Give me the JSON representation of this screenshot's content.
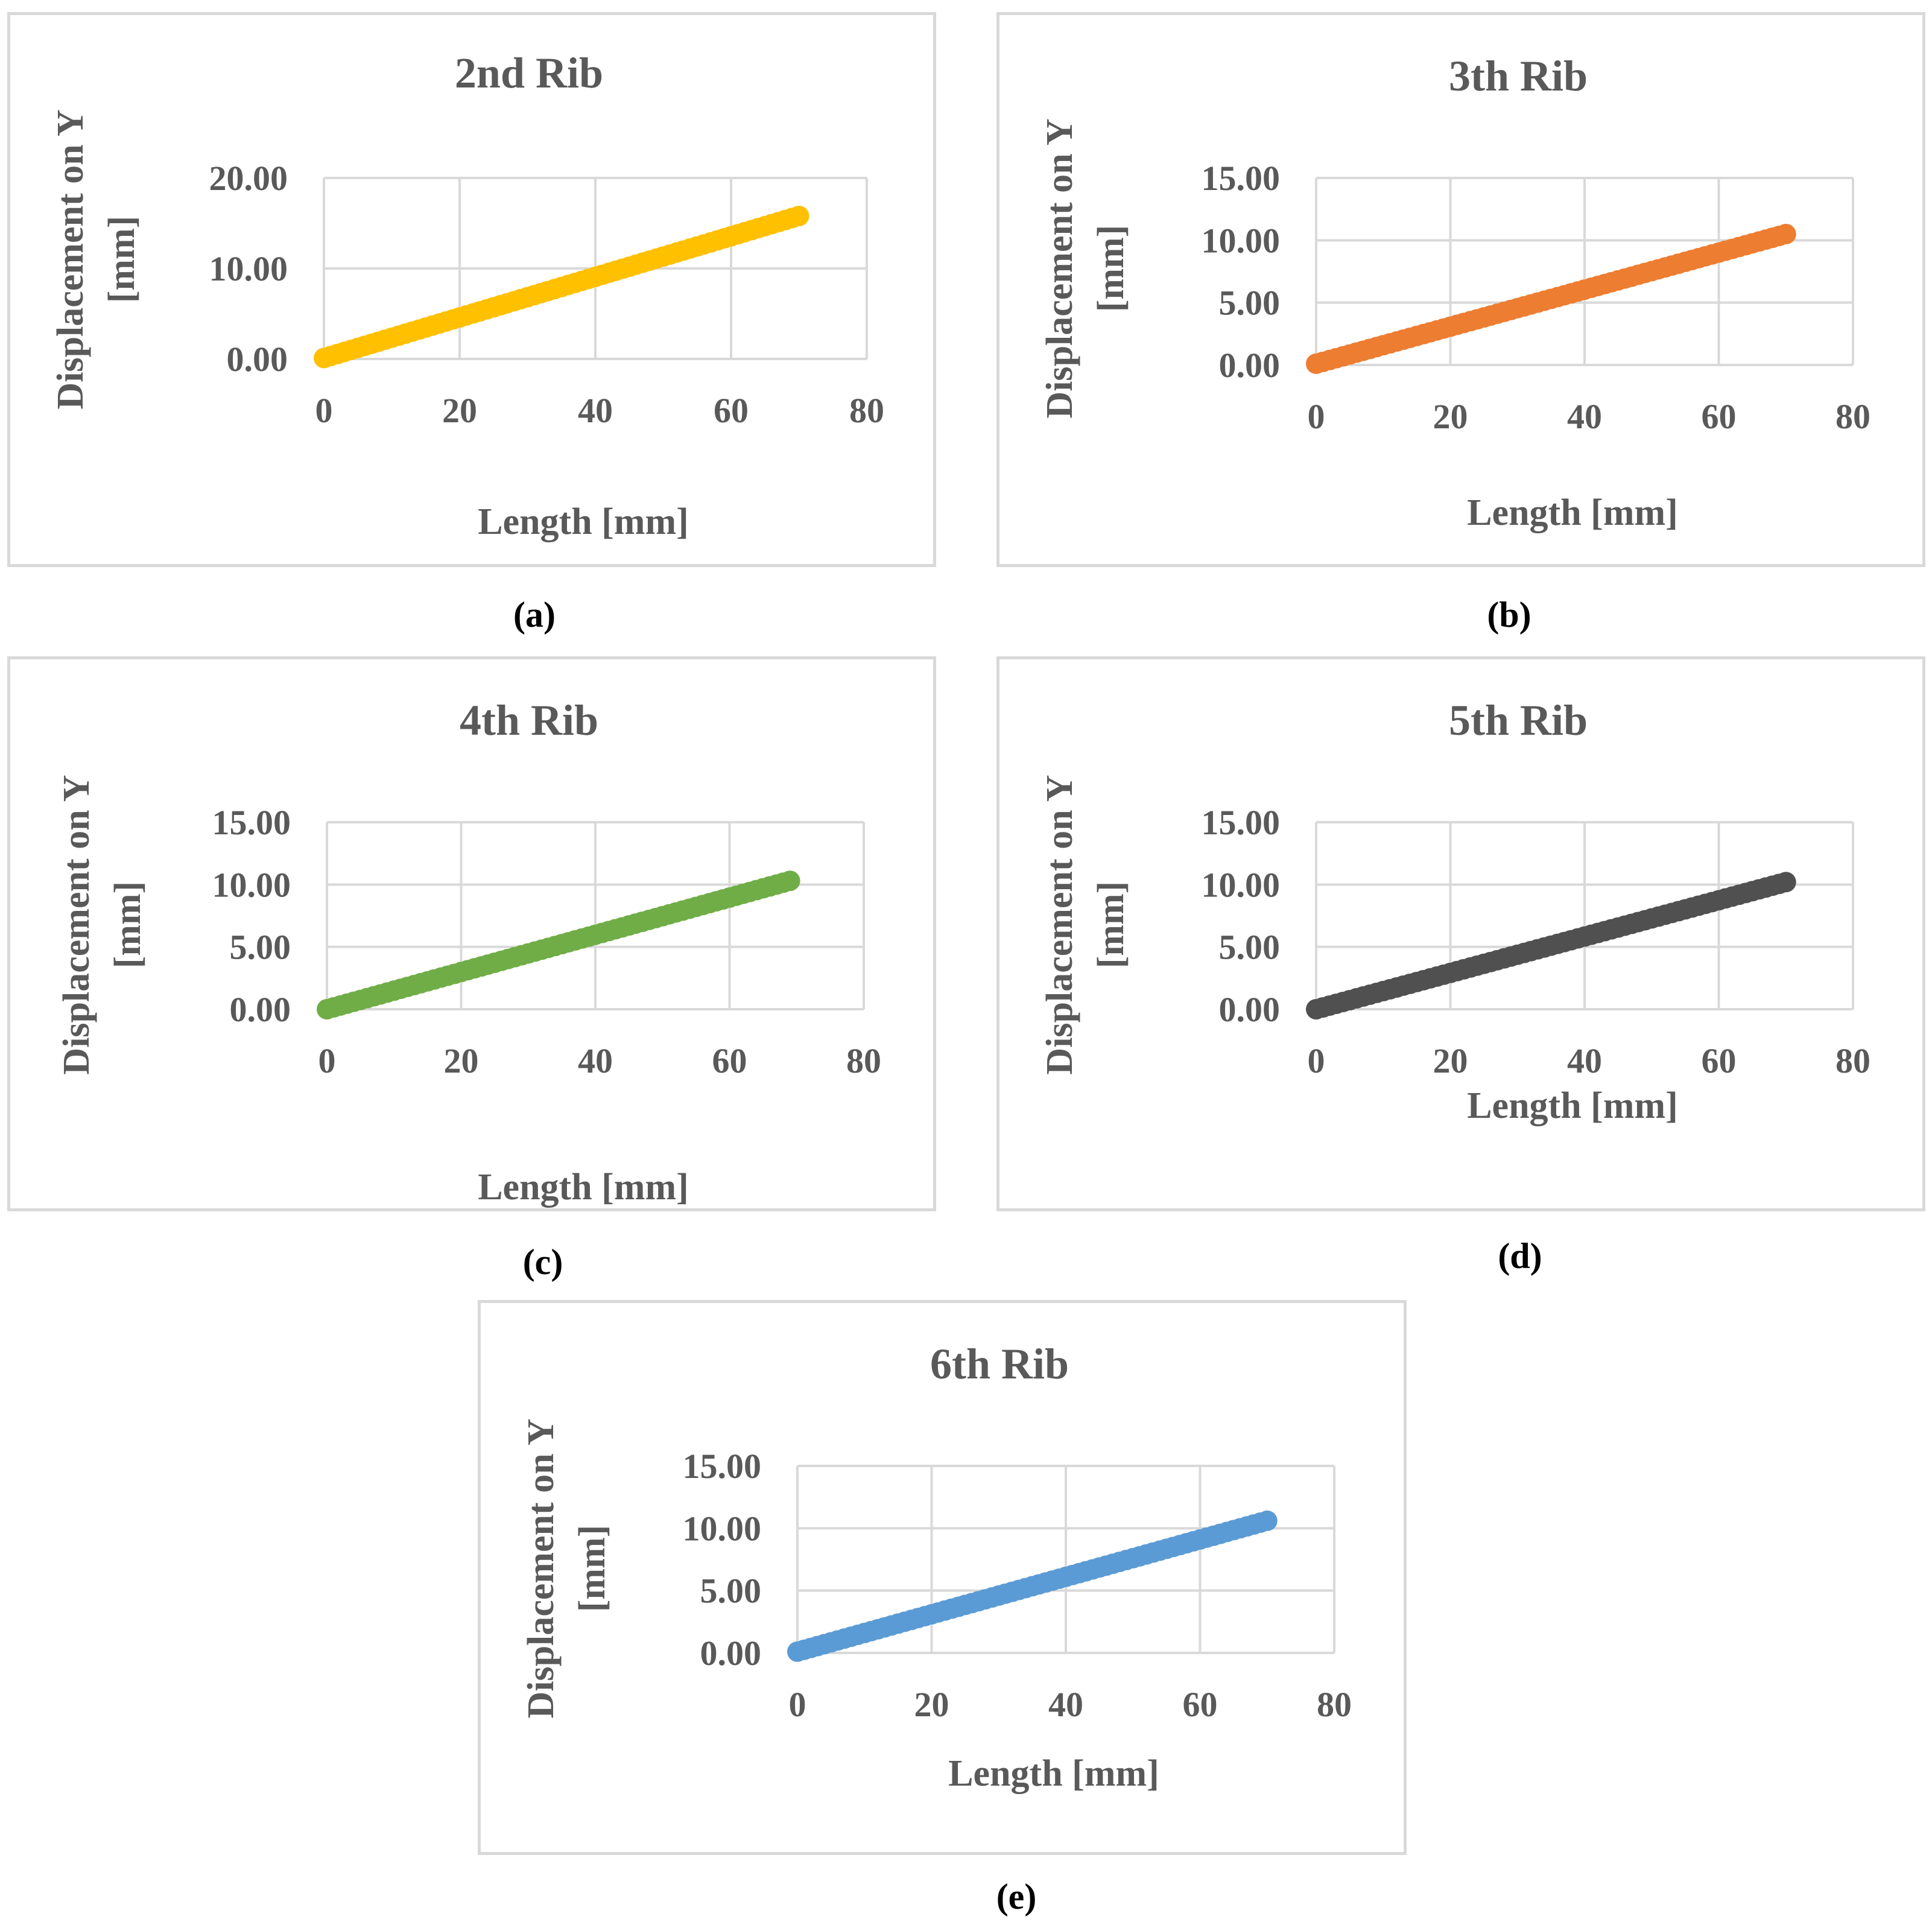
{
  "chart_data": [
    {
      "id": "a",
      "type": "scatter",
      "title": "2nd Rib",
      "xlabel": "Length [mm]",
      "ylabel_lines": [
        "Displacement on Y",
        "[mm]"
      ],
      "xlim": [
        0,
        80
      ],
      "ylim": [
        0,
        20
      ],
      "xticks": [
        "0",
        "20",
        "40",
        "60",
        "80"
      ],
      "yticks": [
        "0.00",
        "10.00",
        "20.00"
      ],
      "color": "#FFC000",
      "series": [
        {
          "name": "2nd Rib",
          "x_start": 0,
          "x_end": 70,
          "x_step": 1,
          "y_start": 0.1,
          "y_end": 15.8
        }
      ],
      "caption": "(a)"
    },
    {
      "id": "b",
      "type": "scatter",
      "title": "3th Rib",
      "xlabel": "Length [mm]",
      "ylabel_lines": [
        "Displacement on Y",
        "[mm]"
      ],
      "xlim": [
        0,
        80
      ],
      "ylim": [
        0,
        15
      ],
      "xticks": [
        "0",
        "20",
        "40",
        "60",
        "80"
      ],
      "yticks": [
        "0.00",
        "5.00",
        "10.00",
        "15.00"
      ],
      "color": "#ED7D31",
      "series": [
        {
          "name": "3th Rib",
          "x_start": 0,
          "x_end": 70,
          "x_step": 1,
          "y_start": 0.1,
          "y_end": 10.5
        }
      ],
      "caption": "(b)"
    },
    {
      "id": "c",
      "type": "scatter",
      "title": "4th Rib",
      "xlabel": "Length [mm]",
      "ylabel_lines": [
        "Displacement on Y",
        "[mm]"
      ],
      "xlim": [
        0,
        80
      ],
      "ylim": [
        0,
        15
      ],
      "xticks": [
        "0",
        "20",
        "40",
        "60",
        "80"
      ],
      "yticks": [
        "0.00",
        "5.00",
        "10.00",
        "15.00"
      ],
      "color": "#70AD47",
      "series": [
        {
          "name": "4th Rib",
          "x_start": 0,
          "x_end": 69,
          "x_step": 1,
          "y_start": 0.0,
          "y_end": 10.3
        }
      ],
      "caption": "(c)"
    },
    {
      "id": "d",
      "type": "scatter",
      "title": "5th Rib",
      "xlabel": "Length [mm]",
      "ylabel_lines": [
        "Displacement on Y",
        "[mm]"
      ],
      "xlim": [
        0,
        80
      ],
      "ylim": [
        0,
        15
      ],
      "xticks": [
        "0",
        "20",
        "40",
        "60",
        "80"
      ],
      "yticks": [
        "0.00",
        "5.00",
        "10.00",
        "15.00"
      ],
      "color": "#505050",
      "series": [
        {
          "name": "5th Rib",
          "x_start": 0,
          "x_end": 70,
          "x_step": 1,
          "y_start": 0.0,
          "y_end": 10.2
        }
      ],
      "caption": "(d)"
    },
    {
      "id": "e",
      "type": "scatter",
      "title": "6th Rib",
      "xlabel": "Length [mm]",
      "ylabel_lines": [
        "Displacement on Y",
        "[mm]"
      ],
      "xlim": [
        0,
        80
      ],
      "ylim": [
        0,
        15
      ],
      "xticks": [
        "0",
        "20",
        "40",
        "60",
        "80"
      ],
      "yticks": [
        "0.00",
        "5.00",
        "10.00",
        "15.00"
      ],
      "color": "#5B9BD5",
      "series": [
        {
          "name": "6th Rib",
          "x_start": 0,
          "x_end": 70,
          "x_step": 1,
          "y_start": 0.1,
          "y_end": 10.6
        }
      ],
      "caption": "(e)"
    }
  ]
}
